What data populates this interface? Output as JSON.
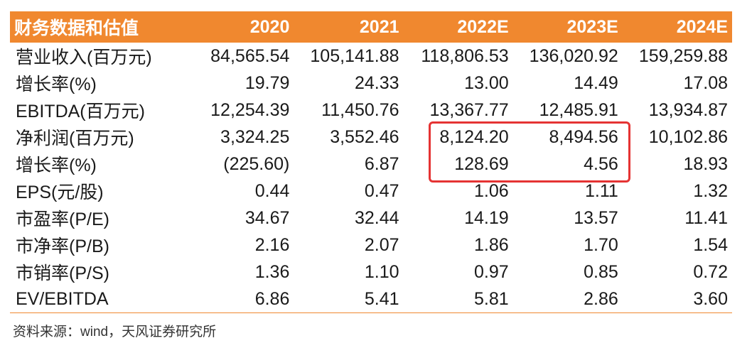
{
  "table": {
    "header_label": "财务数据和估值",
    "years": [
      "2020",
      "2021",
      "2022E",
      "2023E",
      "2024E"
    ],
    "rows": [
      {
        "label": "营业收入(百万元)",
        "values": [
          "84,565.54",
          "105,141.88",
          "118,806.53",
          "136,020.92",
          "159,259.88"
        ]
      },
      {
        "label": "增长率(%)",
        "values": [
          "19.79",
          "24.33",
          "13.00",
          "14.49",
          "17.08"
        ]
      },
      {
        "label": "EBITDA(百万元)",
        "values": [
          "12,254.39",
          "11,450.76",
          "13,367.77",
          "12,485.91",
          "13,934.87"
        ]
      },
      {
        "label": "净利润(百万元)",
        "values": [
          "3,324.25",
          "3,552.46",
          "8,124.20",
          "8,494.56",
          "10,102.86"
        ]
      },
      {
        "label": "增长率(%)",
        "values": [
          "(225.60)",
          "6.87",
          "128.69",
          "4.56",
          "18.93"
        ]
      },
      {
        "label": "EPS(元/股)",
        "values": [
          "0.44",
          "0.47",
          "1.06",
          "1.11",
          "1.32"
        ]
      },
      {
        "label": "市盈率(P/E)",
        "values": [
          "34.67",
          "32.44",
          "14.19",
          "13.57",
          "11.41"
        ]
      },
      {
        "label": "市净率(P/B)",
        "values": [
          "2.16",
          "2.07",
          "1.86",
          "1.70",
          "1.54"
        ]
      },
      {
        "label": "市销率(P/S)",
        "values": [
          "1.36",
          "1.10",
          "0.97",
          "0.85",
          "0.72"
        ]
      },
      {
        "label": "EV/EBITDA",
        "values": [
          "6.86",
          "5.41",
          "5.81",
          "2.86",
          "3.60"
        ]
      }
    ]
  },
  "source": "资料来源：wind，天风证券研究所",
  "colors": {
    "header_bg": "#f0882f",
    "header_text": "#ffffff",
    "highlight_border": "#e53333"
  }
}
